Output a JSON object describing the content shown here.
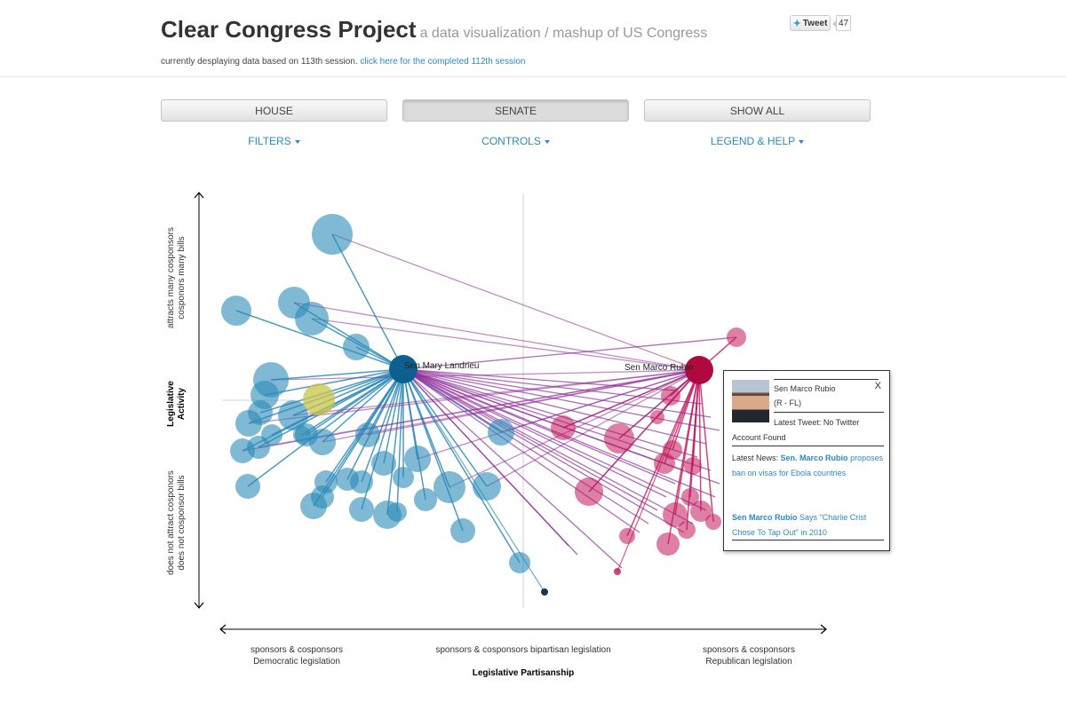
{
  "header": {
    "title": "Clear Congress Project",
    "subtitle": "a data visualization / mashup of US Congress",
    "session_text": "currently desplaying data based on 113th session.",
    "session_link": "click here for the completed 112th session",
    "tweet_label": "Tweet",
    "tweet_count": "47"
  },
  "chambers": [
    {
      "label": "HOUSE",
      "active": false
    },
    {
      "label": "SENATE",
      "active": true
    },
    {
      "label": "SHOW ALL",
      "active": false
    }
  ],
  "menus": [
    {
      "label": "FILTERS"
    },
    {
      "label": "CONTROLS"
    },
    {
      "label": "LEGEND & HELP"
    }
  ],
  "colors": {
    "democrat": "#2b8ab8",
    "republican": "#c2185b",
    "bipartisan_line": "#8e2d99",
    "highlight": "#c8c44a",
    "link": "#2a8bc0"
  },
  "chart_data": {
    "type": "scatter",
    "x_label": "Legislative Partisanship",
    "y_label": "Legislative Activity",
    "y_top_label_1": "attracts many cosponsors",
    "y_top_label_2": "cosponors many bills",
    "y_bottom_label_1": "does not attract cosponors",
    "y_bottom_label_2": "does not cosponsor bills",
    "x_left_label_1": "sponsors & cosponsors",
    "x_left_label_2": "Democratic legislation",
    "x_mid_label": "sponsors & cosponsors bipartisan legislation",
    "x_right_label_1": "sponsors & cosponsors",
    "x_right_label_2": "Republican legislation",
    "selected": [
      {
        "name": "Sen Mary Landrieu",
        "x": 0.27,
        "y": 0.58
      },
      {
        "name": "Sen Marco Rubio",
        "x": 0.73,
        "y": 0.58
      }
    ]
  },
  "popup": {
    "name": "Sen Marco Rubio",
    "party": "(R - FL)",
    "close": "X",
    "tweet_prefix": "Latest Tweet: No Twitter",
    "tweet_suffix": "Account Found",
    "news_prefix": "Latest News:",
    "news1_bold": "Sen. Marco Rubio",
    "news1_rest": "proposes ban on visas for Ebola countries",
    "news2_bold": "Sen Marco Rubio",
    "news2_rest": "Says \"Charlie Crist Chose To Tap Out\" in 2010"
  }
}
